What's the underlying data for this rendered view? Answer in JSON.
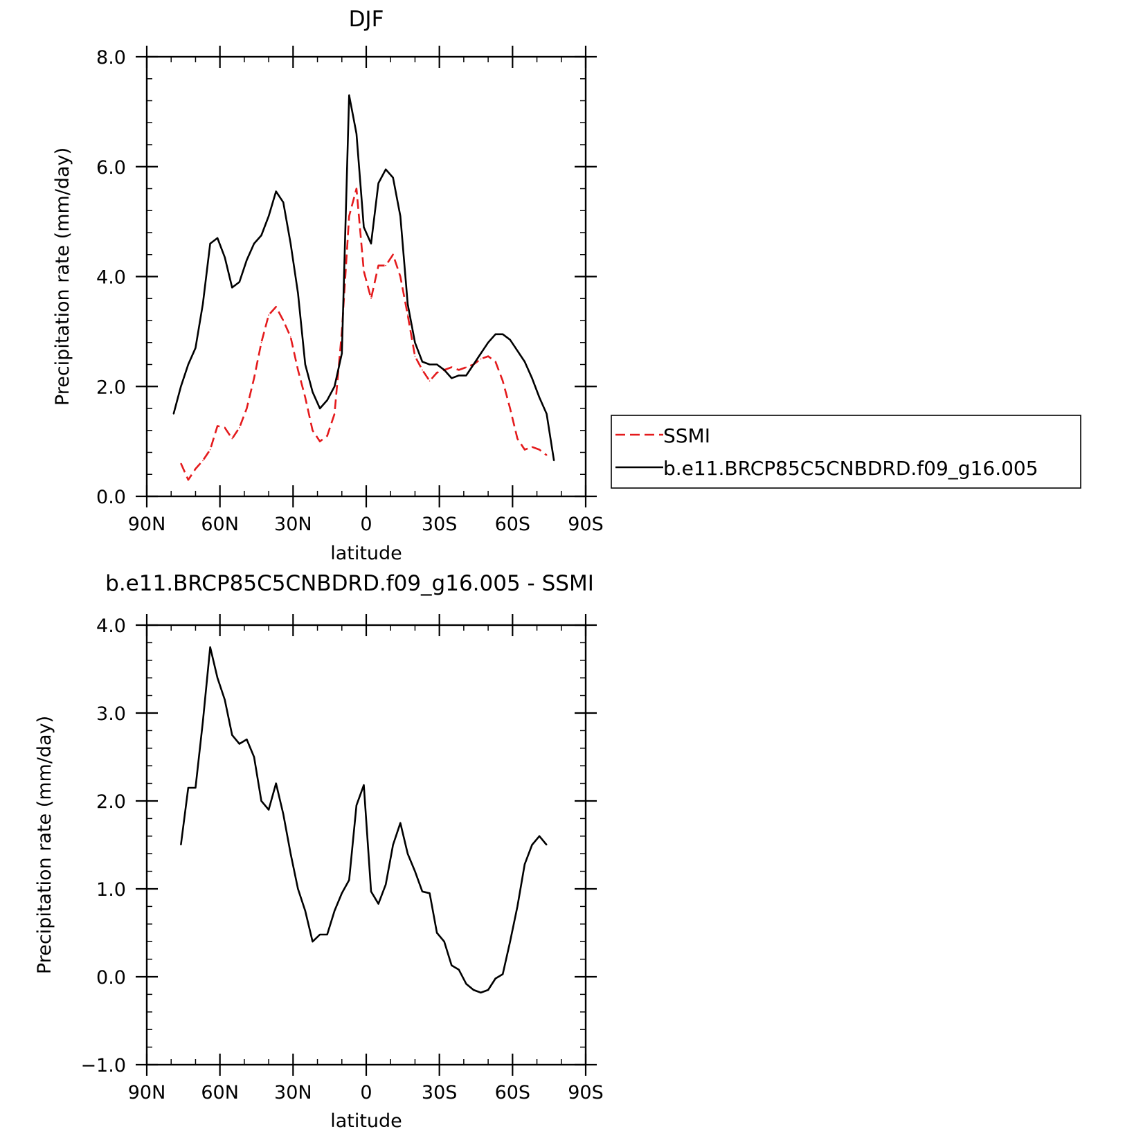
{
  "chart_data": [
    {
      "type": "line",
      "title": "DJF",
      "xlabel": "latitude",
      "ylabel": "Precipitation rate (mm/day)",
      "xlim": [
        90,
        -90
      ],
      "ylim": [
        0,
        8
      ],
      "x_ticks": [
        {
          "v": 90,
          "label": "90N"
        },
        {
          "v": 60,
          "label": "60N"
        },
        {
          "v": 30,
          "label": "30N"
        },
        {
          "v": 0,
          "label": "0"
        },
        {
          "v": -30,
          "label": "30S"
        },
        {
          "v": -60,
          "label": "60S"
        },
        {
          "v": -90,
          "label": "90S"
        }
      ],
      "y_ticks": [
        {
          "v": 0,
          "label": "0.0"
        },
        {
          "v": 2,
          "label": "2.0"
        },
        {
          "v": 4,
          "label": "4.0"
        },
        {
          "v": 6,
          "label": "6.0"
        },
        {
          "v": 8,
          "label": "8.0"
        }
      ],
      "legend": {
        "position": "right",
        "entries": [
          "SSMI",
          "b.e11.BRCP85C5CNBDRD.f09_g16.005"
        ]
      },
      "series": [
        {
          "name": "SSMI",
          "color": "#e41a1c",
          "dash": "dashed",
          "x": [
            76,
            73,
            70,
            67,
            64,
            61,
            58,
            55,
            52,
            49,
            46,
            43,
            40,
            37,
            34,
            31,
            28,
            25,
            22,
            19,
            16,
            13,
            10,
            7,
            4,
            1,
            -2,
            -5,
            -8,
            -11,
            -14,
            -17,
            -20,
            -23,
            -26,
            -29,
            -32,
            -35,
            -38,
            -41,
            -44,
            -47,
            -50,
            -53,
            -56,
            -59,
            -62,
            -65,
            -68,
            -71,
            -74
          ],
          "y": [
            0.6,
            0.3,
            0.5,
            0.65,
            0.85,
            1.28,
            1.25,
            1.05,
            1.25,
            1.6,
            2.15,
            2.8,
            3.3,
            3.45,
            3.2,
            2.9,
            2.3,
            1.8,
            1.2,
            1.0,
            1.1,
            1.5,
            3.0,
            5.1,
            5.6,
            4.1,
            3.6,
            4.2,
            4.2,
            4.4,
            4.0,
            3.3,
            2.55,
            2.3,
            2.1,
            2.25,
            2.3,
            2.35,
            2.3,
            2.35,
            2.4,
            2.5,
            2.55,
            2.45,
            2.1,
            1.6,
            1.05,
            0.85,
            0.9,
            0.85,
            0.75
          ]
        },
        {
          "name": "b.e11.BRCP85C5CNBDRD.f09_g16.005",
          "color": "#000000",
          "dash": "solid",
          "x": [
            79,
            76,
            73,
            70,
            67,
            64,
            61,
            58,
            55,
            52,
            49,
            46,
            43,
            40,
            37,
            34,
            31,
            28,
            25,
            22,
            19,
            16,
            13,
            10,
            7,
            4,
            1,
            -2,
            -5,
            -8,
            -11,
            -14,
            -17,
            -20,
            -23,
            -26,
            -29,
            -32,
            -35,
            -38,
            -41,
            -44,
            -47,
            -50,
            -53,
            -56,
            -59,
            -62,
            -65,
            -68,
            -71,
            -74,
            -77
          ],
          "y": [
            1.5,
            2.0,
            2.4,
            2.7,
            3.5,
            4.6,
            4.7,
            4.35,
            3.8,
            3.9,
            4.3,
            4.6,
            4.75,
            5.1,
            5.55,
            5.35,
            4.6,
            3.7,
            2.4,
            1.9,
            1.6,
            1.75,
            2.0,
            2.6,
            7.3,
            6.6,
            4.9,
            4.6,
            5.7,
            5.95,
            5.8,
            5.1,
            3.5,
            2.8,
            2.45,
            2.4,
            2.4,
            2.3,
            2.15,
            2.2,
            2.2,
            2.4,
            2.6,
            2.8,
            2.95,
            2.95,
            2.85,
            2.65,
            2.45,
            2.15,
            1.8,
            1.5,
            0.65
          ]
        }
      ]
    },
    {
      "type": "line",
      "title": "b.e11.BRCP85C5CNBDRD.f09_g16.005 - SSMI",
      "xlabel": "latitude",
      "ylabel": "Precipitation rate (mm/day)",
      "xlim": [
        90,
        -90
      ],
      "ylim": [
        -1,
        4
      ],
      "x_ticks": [
        {
          "v": 90,
          "label": "90N"
        },
        {
          "v": 60,
          "label": "60N"
        },
        {
          "v": 30,
          "label": "30N"
        },
        {
          "v": 0,
          "label": "0"
        },
        {
          "v": -30,
          "label": "30S"
        },
        {
          "v": -60,
          "label": "60S"
        },
        {
          "v": -90,
          "label": "90S"
        }
      ],
      "y_ticks": [
        {
          "v": -1,
          "label": "−1.0"
        },
        {
          "v": 0,
          "label": "0.0"
        },
        {
          "v": 1,
          "label": "1.0"
        },
        {
          "v": 2,
          "label": "2.0"
        },
        {
          "v": 3,
          "label": "3.0"
        },
        {
          "v": 4,
          "label": "4.0"
        }
      ],
      "series": [
        {
          "color": "#000000",
          "dash": "solid",
          "x": [
            76,
            73,
            70,
            67,
            64,
            61,
            58,
            55,
            52,
            49,
            46,
            43,
            40,
            37,
            34,
            31,
            28,
            25,
            22,
            19,
            16,
            13,
            10,
            7,
            4,
            1,
            -2,
            -5,
            -8,
            -11,
            -14,
            -17,
            -20,
            -23,
            -26,
            -29,
            -32,
            -35,
            -38,
            -41,
            -44,
            -47,
            -50,
            -53,
            -56,
            -59,
            -62,
            -65,
            -68,
            -71,
            -74
          ],
          "y": [
            1.5,
            2.15,
            2.15,
            2.9,
            3.75,
            3.4,
            3.15,
            2.75,
            2.65,
            2.7,
            2.5,
            2.0,
            1.9,
            2.2,
            1.85,
            1.4,
            1.0,
            0.75,
            0.4,
            0.48,
            0.48,
            0.75,
            0.95,
            1.1,
            1.95,
            2.18,
            0.97,
            0.83,
            1.05,
            1.5,
            1.75,
            1.4,
            1.2,
            0.97,
            0.95,
            0.5,
            0.4,
            0.13,
            0.08,
            -0.08,
            -0.15,
            -0.18,
            -0.15,
            -0.02,
            0.03,
            0.4,
            0.8,
            1.28,
            1.5,
            1.6,
            1.5
          ]
        }
      ]
    }
  ]
}
